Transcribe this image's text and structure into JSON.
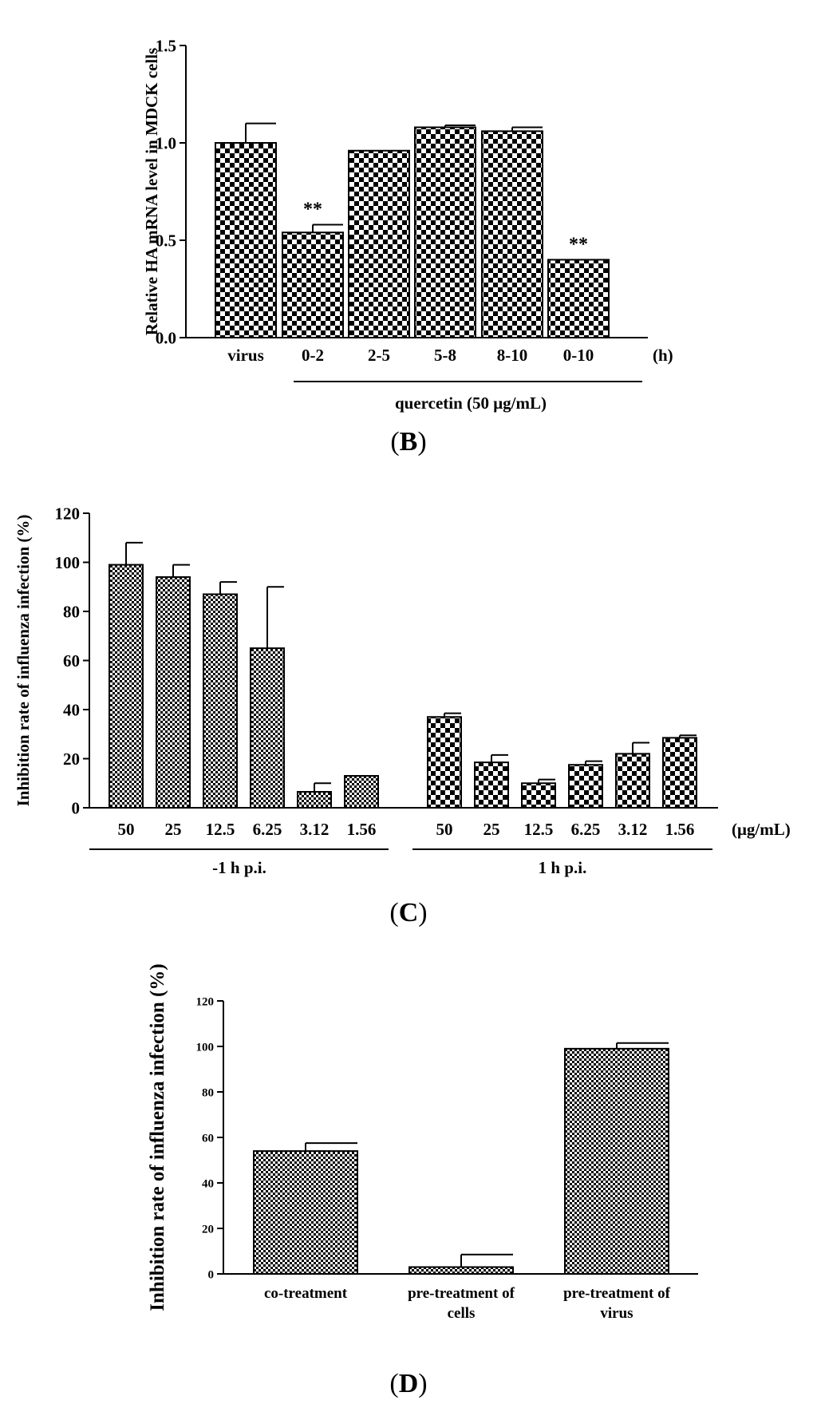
{
  "panels": [
    {
      "id": "B",
      "label": "B"
    },
    {
      "id": "C",
      "label": "C"
    },
    {
      "id": "D",
      "label": "D"
    }
  ],
  "chart_data": [
    {
      "id": "B",
      "type": "bar",
      "ylabel": "Relative HA mRNA level in MDCK cells",
      "ylim": [
        0,
        1.5
      ],
      "yticks": [
        "0.0",
        "0.5",
        "1.0",
        "1.5"
      ],
      "categories": [
        "virus",
        "0-2",
        "2-5",
        "5-8",
        "8-10",
        "0-10"
      ],
      "values": [
        1.0,
        0.54,
        0.96,
        1.08,
        1.06,
        0.4
      ],
      "errors": [
        0.1,
        0.04,
        0.0,
        0.01,
        0.02,
        0.0
      ],
      "annotations": [
        "",
        "**",
        "",
        "",
        "",
        "**"
      ],
      "unit_label": "(h)",
      "group_label": "quercetin (50 μg/mL)",
      "pattern": "coarse-checker"
    },
    {
      "id": "C",
      "type": "bar",
      "ylabel": "Inhibition rate of influenza  infection (%)",
      "ylim": [
        0,
        120
      ],
      "yticks": [
        "0",
        "20",
        "40",
        "60",
        "80",
        "100",
        "120"
      ],
      "unit_label": "(μg/mL)",
      "groups": [
        {
          "name": "-1 h p.i.",
          "categories": [
            "50",
            "25",
            "12.5",
            "6.25",
            "3.12",
            "1.56"
          ],
          "values": [
            99,
            94,
            87,
            65,
            6.5,
            13
          ],
          "errors": [
            9,
            5,
            5,
            25,
            3.5,
            0
          ],
          "pattern": "fine-checker"
        },
        {
          "name": "1 h p.i.",
          "categories": [
            "50",
            "25",
            "12.5",
            "6.25",
            "3.12",
            "1.56"
          ],
          "values": [
            37,
            18.5,
            10,
            17.5,
            22,
            28.5
          ],
          "errors": [
            1.5,
            3,
            1.5,
            1.5,
            4.5,
            1
          ],
          "pattern": "coarse-checker"
        }
      ]
    },
    {
      "id": "D",
      "type": "bar",
      "ylabel": "Inhibition rate of influenza  infection (%)",
      "ylim": [
        0,
        120
      ],
      "yticks": [
        "0",
        "20",
        "40",
        "60",
        "80",
        "100",
        "120"
      ],
      "categories": [
        [
          "co-treatment"
        ],
        [
          "pre-treatment of",
          "cells"
        ],
        [
          "pre-treatment of",
          "virus"
        ]
      ],
      "values": [
        54,
        3,
        99
      ],
      "errors": [
        3.5,
        5.5,
        2.5
      ],
      "pattern": "fine-checker"
    }
  ]
}
